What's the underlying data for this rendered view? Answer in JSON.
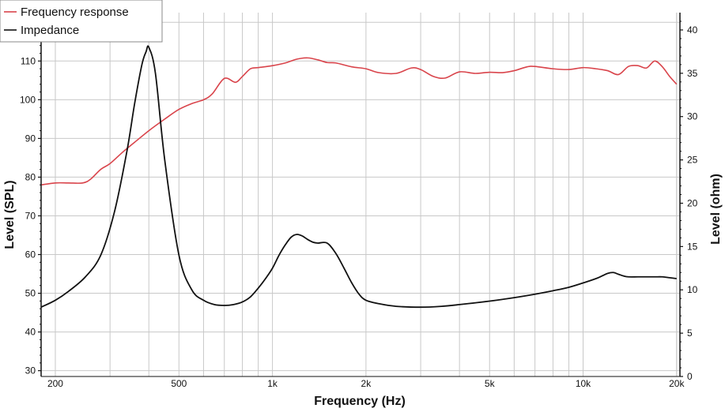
{
  "chart_data": {
    "type": "line",
    "xlabel": "Frequency (Hz)",
    "ylabel_left": "Level (SPL)",
    "ylabel_right": "Level (ohm)",
    "x_scale": "log",
    "xlim": [
      180,
      20500
    ],
    "ylim_left": [
      28.5,
      122.5
    ],
    "ylim_right": [
      0,
      42
    ],
    "x_ticks": [
      200,
      500,
      1000,
      2000,
      5000,
      10000,
      20000
    ],
    "x_tick_labels": [
      "200",
      "500",
      "1k",
      "2k",
      "5k",
      "10k",
      "20k"
    ],
    "y_left_ticks": [
      30,
      40,
      50,
      60,
      70,
      80,
      90,
      100,
      110,
      120
    ],
    "y_left_tick_labels": [
      "30",
      "40",
      "50",
      "60",
      "70",
      "80",
      "90",
      "100",
      "110",
      "120"
    ],
    "y_right_ticks": [
      0,
      5,
      10,
      15,
      20,
      25,
      30,
      35,
      40
    ],
    "y_right_tick_labels": [
      "0",
      "5",
      "10",
      "15",
      "20",
      "25",
      "30",
      "35",
      "40"
    ],
    "grid": true,
    "legend": {
      "placement": "top-left",
      "entries": [
        {
          "name": "Frequency response",
          "color": "#d9444b"
        },
        {
          "name": "Impedance",
          "color": "#111111"
        }
      ]
    },
    "series": [
      {
        "name": "Frequency response",
        "axis": "left",
        "color": "#d9444b",
        "x": [
          180,
          200,
          220,
          245,
          260,
          280,
          300,
          330,
          360,
          400,
          450,
          500,
          550,
          600,
          640,
          700,
          760,
          800,
          850,
          900,
          1000,
          1100,
          1200,
          1300,
          1400,
          1500,
          1600,
          1800,
          2000,
          2200,
          2500,
          2800,
          3000,
          3300,
          3600,
          4000,
          4500,
          5000,
          5500,
          6000,
          6600,
          7000,
          8000,
          9000,
          10000,
          11000,
          12000,
          13000,
          14000,
          15000,
          16000,
          17000,
          18000,
          19000,
          20000
        ],
        "y": [
          78,
          78.5,
          78.5,
          78.5,
          79.5,
          82,
          83.5,
          86.5,
          89,
          92,
          95,
          97.5,
          99,
          100,
          101.5,
          105.5,
          104.5,
          106,
          108,
          108.3,
          108.8,
          109.5,
          110.5,
          110.8,
          110.3,
          109.6,
          109.5,
          108.5,
          108,
          107,
          106.8,
          108.2,
          107.8,
          106,
          105.6,
          107.2,
          106.8,
          107.1,
          107,
          107.5,
          108.5,
          108.6,
          108,
          107.8,
          108.3,
          108,
          107.5,
          106.5,
          108.6,
          108.8,
          108.2,
          110,
          108.5,
          106,
          104
        ]
      },
      {
        "name": "Impedance",
        "axis": "right",
        "color": "#111111",
        "x": [
          180,
          200,
          220,
          250,
          280,
          310,
          340,
          360,
          380,
          392,
          400,
          420,
          450,
          500,
          550,
          600,
          650,
          700,
          750,
          800,
          850,
          900,
          950,
          1000,
          1050,
          1100,
          1150,
          1200,
          1250,
          1300,
          1350,
          1400,
          1500,
          1600,
          1700,
          1800,
          1900,
          2000,
          2200,
          2500,
          3000,
          3500,
          4000,
          5000,
          6000,
          7000,
          8000,
          9000,
          10000,
          11000,
          11500,
          12000,
          12500,
          13000,
          13500,
          14000,
          15000,
          16000,
          17000,
          18000,
          19000,
          20000
        ],
        "y": [
          8,
          8.8,
          9.8,
          11.5,
          14,
          19,
          26,
          31.5,
          36,
          37.5,
          38,
          35,
          25,
          14,
          10,
          8.8,
          8.3,
          8.2,
          8.3,
          8.6,
          9.2,
          10.2,
          11.3,
          12.5,
          14,
          15.2,
          16.1,
          16.4,
          16.2,
          15.8,
          15.5,
          15.4,
          15.4,
          14.2,
          12.5,
          10.8,
          9.5,
          8.8,
          8.4,
          8.1,
          8,
          8.1,
          8.3,
          8.7,
          9.1,
          9.5,
          9.9,
          10.3,
          10.8,
          11.3,
          11.6,
          11.9,
          12,
          11.8,
          11.6,
          11.5,
          11.5,
          11.5,
          11.5,
          11.5,
          11.4,
          11.3
        ]
      }
    ]
  }
}
